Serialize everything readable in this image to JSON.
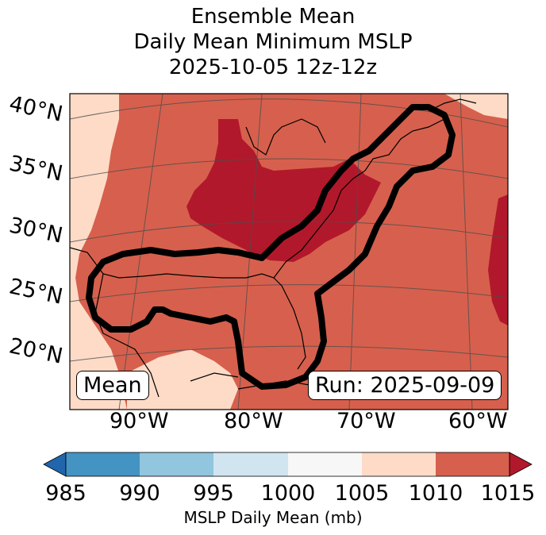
{
  "title": {
    "line1": "Ensemble Mean",
    "line2": "Daily Mean Minimum MSLP",
    "line3": "2025-10-05 12z-12z"
  },
  "map": {
    "lat_labels": [
      "40°N",
      "35°N",
      "30°N",
      "25°N",
      "20°N"
    ],
    "lon_labels": [
      "90°W",
      "80°W",
      "70°W",
      "60°W"
    ],
    "box_left": "Mean",
    "box_right": "Run: 2025-09-09",
    "fill_colors": {
      "1005-1010": "#fddbc7",
      "1010-1015": "#d6604d",
      "above-1015": "#b2182b"
    },
    "contour_color": "#000000"
  },
  "colorbar": {
    "label": "MSLP Daily Mean (mb)",
    "ticks": [
      "985",
      "990",
      "995",
      "1000",
      "1005",
      "1010",
      "1015"
    ],
    "segments": [
      {
        "range": "<985",
        "color": "#2166ac"
      },
      {
        "range": "985-990",
        "color": "#4393c3"
      },
      {
        "range": "990-995",
        "color": "#92c5de"
      },
      {
        "range": "995-1000",
        "color": "#d1e5f0"
      },
      {
        "range": "1000-1005",
        "color": "#f7f7f7"
      },
      {
        "range": "1005-1010",
        "color": "#fddbc7"
      },
      {
        "range": "1010-1015",
        "color": "#d6604d"
      },
      {
        "range": ">1015",
        "color": "#b2182b"
      }
    ]
  }
}
